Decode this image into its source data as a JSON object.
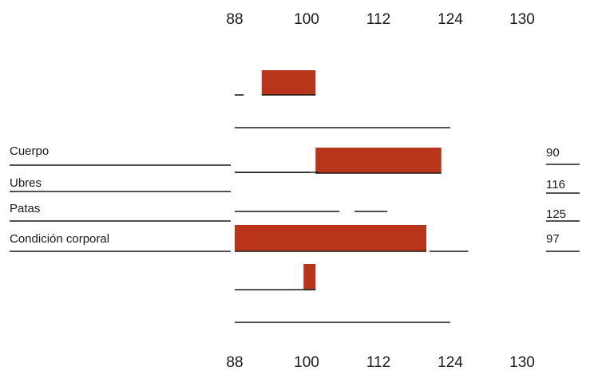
{
  "chart_data": {
    "type": "bar",
    "title": "",
    "xlabel": "",
    "ylabel": "",
    "ticks": [
      "88",
      "100",
      "112",
      "124",
      "130"
    ],
    "categories": [
      "Cuerpo",
      "Ubres",
      "Patas",
      "Condición corporal"
    ],
    "values": [
      "90",
      "116",
      "125",
      "97"
    ],
    "bars": [
      {
        "start": 92.5,
        "end": 101.5
      },
      {
        "start": 101.5,
        "end": 122.5
      },
      {
        "start": 88,
        "end": 120
      },
      {
        "start": 99.5,
        "end": 101.5
      }
    ],
    "segments": [
      {
        "start": 88,
        "end": 89.5
      },
      {
        "start": 88,
        "end": 124
      },
      {
        "start": 88,
        "end": 100.5
      },
      {
        "start": 88,
        "end": 102
      },
      {
        "start": 88,
        "end": 105.5
      },
      {
        "start": 108,
        "end": 113.5
      },
      {
        "start": 120.5,
        "end": 125.5
      },
      {
        "start": 88,
        "end": 99.5
      },
      {
        "start": 88,
        "end": 124
      }
    ],
    "bar_color": "#b8351c"
  }
}
